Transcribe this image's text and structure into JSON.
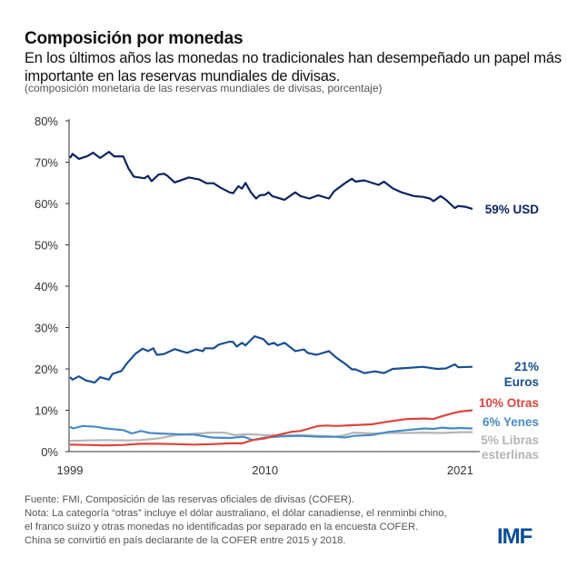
{
  "header": {
    "title": "Composición por monedas",
    "subtitle": "En los últimos años las monedas no tradicionales han desempeñado un papel más importante en las reservas mundiales de divisas.",
    "unit_note": "(composición monetaria de las reservas mundiales de divisas, porcentaje)"
  },
  "chart_data": {
    "type": "line",
    "ylim": [
      0,
      80
    ],
    "xlim": [
      1999,
      2021.8
    ],
    "y_ticks": [
      "0%",
      "10%",
      "20%",
      "30%",
      "40%",
      "50%",
      "60%",
      "70%",
      "80%"
    ],
    "x_ticks": [
      "1999",
      "2010",
      "2021"
    ],
    "grid": false,
    "series": [
      {
        "key": "usd",
        "label": "59% USD",
        "color": "#0b2460",
        "points": [
          [
            1999.0,
            71
          ],
          [
            1999.15,
            72
          ],
          [
            1999.5,
            70.8
          ],
          [
            2000.0,
            71.5
          ],
          [
            2000.3,
            72.3
          ],
          [
            2000.7,
            71
          ],
          [
            2001.2,
            72.5
          ],
          [
            2001.5,
            71.4
          ],
          [
            2002.0,
            71.4
          ],
          [
            2002.3,
            68.5
          ],
          [
            2002.6,
            66.5
          ],
          [
            2003.2,
            66.1
          ],
          [
            2003.4,
            66.7
          ],
          [
            2003.6,
            65.4
          ],
          [
            2004.0,
            67
          ],
          [
            2004.3,
            67.2
          ],
          [
            2004.5,
            66.7
          ],
          [
            2004.9,
            65.1
          ],
          [
            2005.7,
            66.3
          ],
          [
            2006.3,
            65.8
          ],
          [
            2006.7,
            64.9
          ],
          [
            2007.1,
            64.9
          ],
          [
            2007.5,
            63.8
          ],
          [
            2008.0,
            62.7
          ],
          [
            2008.2,
            62.5
          ],
          [
            2008.5,
            64.2
          ],
          [
            2008.7,
            63.6
          ],
          [
            2008.9,
            65
          ],
          [
            2009.2,
            62.7
          ],
          [
            2009.5,
            61.2
          ],
          [
            2009.7,
            62
          ],
          [
            2010.0,
            62.1
          ],
          [
            2010.2,
            62.7
          ],
          [
            2010.4,
            61.8
          ],
          [
            2011.1,
            60.9
          ],
          [
            2011.7,
            62.7
          ],
          [
            2012.0,
            61.8
          ],
          [
            2012.5,
            61.2
          ],
          [
            2013.0,
            62
          ],
          [
            2013.6,
            61.2
          ],
          [
            2013.9,
            63
          ],
          [
            2014.5,
            64.9
          ],
          [
            2014.9,
            66
          ],
          [
            2015.1,
            65.3
          ],
          [
            2015.6,
            65.6
          ],
          [
            2016.4,
            64.5
          ],
          [
            2016.7,
            65.3
          ],
          [
            2017.2,
            63.7
          ],
          [
            2017.7,
            62.7
          ],
          [
            2018.4,
            61.8
          ],
          [
            2018.9,
            61.6
          ],
          [
            2019.3,
            61.2
          ],
          [
            2019.5,
            60.6
          ],
          [
            2019.9,
            61.8
          ],
          [
            2020.2,
            60.9
          ],
          [
            2020.7,
            58.9
          ],
          [
            2020.9,
            59.4
          ],
          [
            2021.3,
            59.2
          ],
          [
            2021.7,
            58.7
          ]
        ]
      },
      {
        "key": "eur",
        "label_value": "21%",
        "label_name": "Euros",
        "color": "#1a4f93",
        "points": [
          [
            1999.0,
            18
          ],
          [
            1999.15,
            17.4
          ],
          [
            1999.5,
            18.2
          ],
          [
            1999.9,
            17.2
          ],
          [
            2000.4,
            16.7
          ],
          [
            2000.7,
            18
          ],
          [
            2001.2,
            17.4
          ],
          [
            2001.4,
            18.8
          ],
          [
            2001.9,
            19.5
          ],
          [
            2002.2,
            21.3
          ],
          [
            2002.7,
            23.7
          ],
          [
            2003.1,
            24.9
          ],
          [
            2003.4,
            24.3
          ],
          [
            2003.7,
            25
          ],
          [
            2003.9,
            23.4
          ],
          [
            2004.3,
            23.6
          ],
          [
            2004.9,
            24.8
          ],
          [
            2005.6,
            23.9
          ],
          [
            2006.1,
            24.7
          ],
          [
            2006.5,
            24.3
          ],
          [
            2006.6,
            25
          ],
          [
            2007.1,
            25
          ],
          [
            2007.4,
            25.9
          ],
          [
            2008.0,
            26.6
          ],
          [
            2008.2,
            26.5
          ],
          [
            2008.4,
            25.4
          ],
          [
            2008.7,
            26.3
          ],
          [
            2008.9,
            25.7
          ],
          [
            2009.4,
            27.9
          ],
          [
            2009.9,
            27.2
          ],
          [
            2010.2,
            25.9
          ],
          [
            2010.5,
            26.3
          ],
          [
            2010.7,
            25.7
          ],
          [
            2011.1,
            26.3
          ],
          [
            2011.7,
            24.3
          ],
          [
            2012.2,
            24.7
          ],
          [
            2012.4,
            23.9
          ],
          [
            2012.9,
            23.4
          ],
          [
            2013.6,
            24.3
          ],
          [
            2014.0,
            22.8
          ],
          [
            2014.5,
            21.3
          ],
          [
            2014.9,
            19.9
          ],
          [
            2015.1,
            19.9
          ],
          [
            2015.6,
            19
          ],
          [
            2016.2,
            19.4
          ],
          [
            2016.7,
            19
          ],
          [
            2017.2,
            20
          ],
          [
            2017.9,
            20.2
          ],
          [
            2018.9,
            20.5
          ],
          [
            2019.7,
            20
          ],
          [
            2020.2,
            20.1
          ],
          [
            2020.7,
            21.1
          ],
          [
            2020.9,
            20.4
          ],
          [
            2021.7,
            20.5
          ]
        ]
      },
      {
        "key": "other",
        "label": "10% Otras",
        "color": "#d9463e",
        "points": [
          [
            1999.0,
            1.7
          ],
          [
            2000.0,
            1.6
          ],
          [
            2001.0,
            1.5
          ],
          [
            2002.0,
            1.6
          ],
          [
            2003.0,
            1.9
          ],
          [
            2004.0,
            1.9
          ],
          [
            2005.0,
            1.8
          ],
          [
            2006.0,
            1.7
          ],
          [
            2007.0,
            1.8
          ],
          [
            2008.0,
            2.0
          ],
          [
            2008.7,
            2.0
          ],
          [
            2009.3,
            2.8
          ],
          [
            2010.0,
            3.2
          ],
          [
            2010.5,
            3.8
          ],
          [
            2011.0,
            4.3
          ],
          [
            2011.5,
            4.8
          ],
          [
            2012.0,
            5.0
          ],
          [
            2012.5,
            5.6
          ],
          [
            2013.0,
            6.2
          ],
          [
            2013.5,
            6.3
          ],
          [
            2014.0,
            6.2
          ],
          [
            2015.0,
            6.4
          ],
          [
            2016.0,
            6.6
          ],
          [
            2017.0,
            7.3
          ],
          [
            2018.0,
            7.9
          ],
          [
            2019.0,
            8.0
          ],
          [
            2019.5,
            7.9
          ],
          [
            2020.0,
            8.6
          ],
          [
            2020.6,
            9.3
          ],
          [
            2021.0,
            9.7
          ],
          [
            2021.7,
            10
          ]
        ]
      },
      {
        "key": "jpy",
        "label": "6% Yenes",
        "color": "#4a8ac8",
        "points": [
          [
            1999.0,
            6
          ],
          [
            1999.2,
            5.6
          ],
          [
            1999.7,
            6.2
          ],
          [
            2000.5,
            6.0
          ],
          [
            2001.0,
            5.6
          ],
          [
            2002.0,
            5.2
          ],
          [
            2002.5,
            4.4
          ],
          [
            2003.0,
            5.0
          ],
          [
            2003.5,
            4.5
          ],
          [
            2004.0,
            4.4
          ],
          [
            2005.0,
            4.2
          ],
          [
            2006.0,
            4.1
          ],
          [
            2007.0,
            3.4
          ],
          [
            2008.0,
            3.3
          ],
          [
            2008.8,
            3.6
          ],
          [
            2009.3,
            2.8
          ],
          [
            2010.0,
            3.4
          ],
          [
            2011.0,
            3.7
          ],
          [
            2012.0,
            3.8
          ],
          [
            2013.0,
            3.6
          ],
          [
            2014.0,
            3.6
          ],
          [
            2014.5,
            3.4
          ],
          [
            2015.0,
            3.8
          ],
          [
            2016.0,
            4.0
          ],
          [
            2017.0,
            4.8
          ],
          [
            2018.0,
            5.2
          ],
          [
            2019.0,
            5.6
          ],
          [
            2019.5,
            5.5
          ],
          [
            2020.0,
            5.8
          ],
          [
            2020.5,
            5.6
          ],
          [
            2021.0,
            5.7
          ],
          [
            2021.7,
            5.6
          ]
        ]
      },
      {
        "key": "gbp",
        "label_value": "5% Libras",
        "label_name": "esterlinas",
        "color": "#b5b5b5",
        "points": [
          [
            1999.0,
            2.6
          ],
          [
            2000.0,
            2.7
          ],
          [
            2001.0,
            2.8
          ],
          [
            2002.0,
            2.7
          ],
          [
            2003.0,
            2.8
          ],
          [
            2004.0,
            3.2
          ],
          [
            2005.0,
            4.0
          ],
          [
            2006.0,
            4.3
          ],
          [
            2007.0,
            4.6
          ],
          [
            2007.7,
            4.6
          ],
          [
            2008.3,
            4.0
          ],
          [
            2009.0,
            4.2
          ],
          [
            2010.0,
            4.0
          ],
          [
            2011.0,
            3.9
          ],
          [
            2012.0,
            4.0
          ],
          [
            2013.0,
            3.8
          ],
          [
            2014.0,
            3.6
          ],
          [
            2014.5,
            4.0
          ],
          [
            2015.0,
            4.6
          ],
          [
            2016.0,
            4.4
          ],
          [
            2017.0,
            4.5
          ],
          [
            2018.0,
            4.5
          ],
          [
            2019.0,
            4.6
          ],
          [
            2020.0,
            4.5
          ],
          [
            2021.0,
            4.7
          ],
          [
            2021.7,
            4.7
          ]
        ]
      }
    ]
  },
  "footer": {
    "lines": [
      "Fuente: FMI, Composición  de las reservas oficiales de divisas (COFER).",
      "Nota: La categoría “otras” incluye el dólar australiano,  el dólar canadiense,  el renminbi chino,",
      "el franco suizo y otras monedas no identificadas por separado en la encuesta COFER.",
      "China se convirtió  en país declarante de la COFER entre 2015 y 2018."
    ],
    "logo": "IMF",
    "logo_color": "#004c97"
  }
}
